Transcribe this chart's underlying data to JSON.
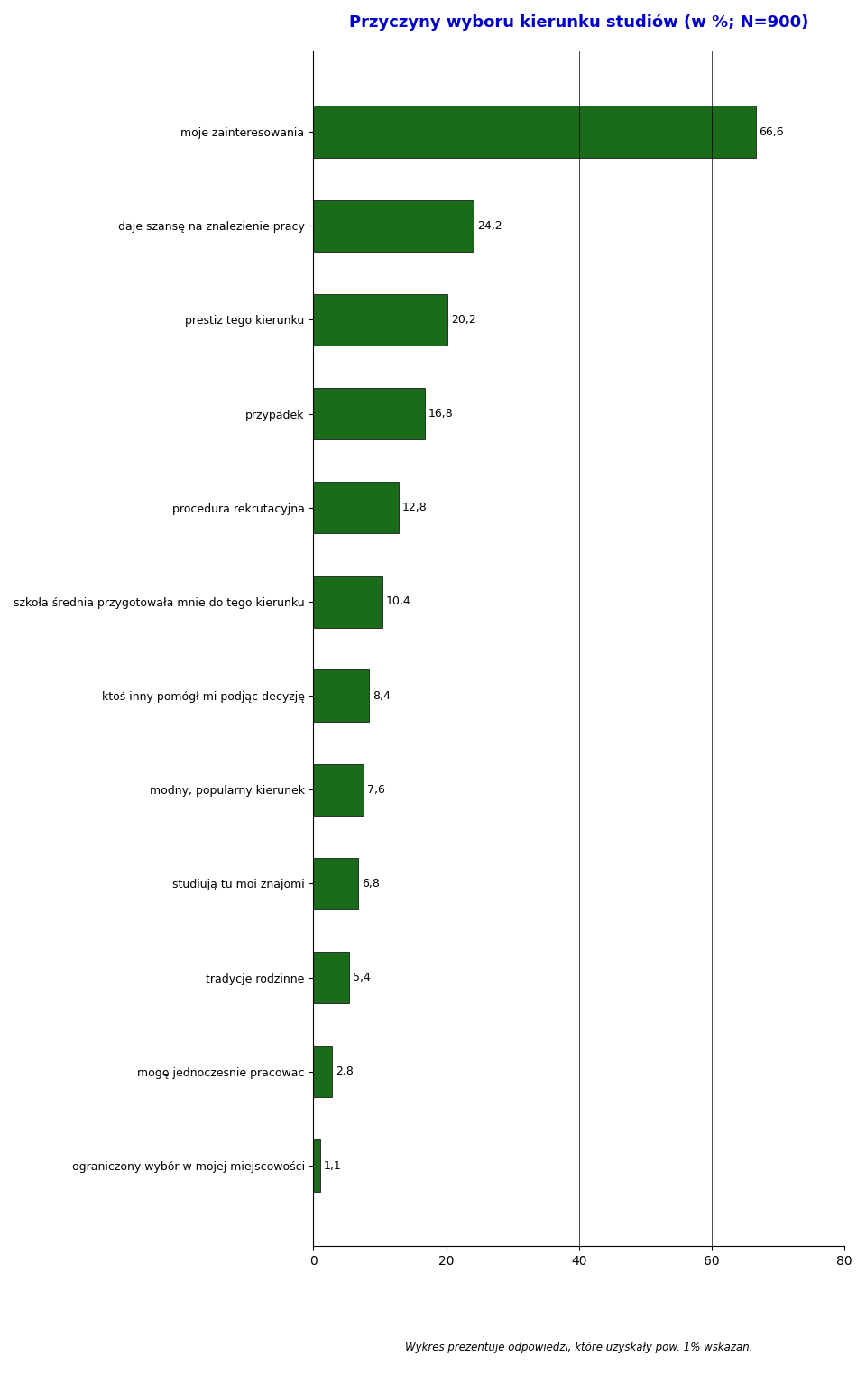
{
  "title": "Przyczyny wyboru kierunku studiów (w %; N=900)",
  "title_color": "#0000CC",
  "categories": [
    "moje zainteresowania",
    "daje szansę na znalezienie pracy",
    "prestiz tego kierunku",
    "przypadek",
    "procedura rekrutacyjna",
    "szkoła średnia przygotowała mnie do tego kierunku",
    "ktoś inny pomógł mi podjąc decyzję",
    "modny, popularny kierunek",
    "studiują tu moi znajomi",
    "tradycje rodzinne",
    "mogę jednoczesnie pracowac",
    "ograniczony wybór w mojej miejscowości"
  ],
  "values": [
    66.6,
    24.2,
    20.2,
    16.8,
    12.8,
    10.4,
    8.4,
    7.6,
    6.8,
    5.4,
    2.8,
    1.1
  ],
  "bar_color": "#1a6b1a",
  "bar_edge_color": "#000000",
  "xlabel": "",
  "xlim": [
    0,
    80
  ],
  "xticks": [
    0,
    20,
    40,
    60,
    80
  ],
  "caption": "Wykres prezentuje odpowiedzi, które uzyskały pow. 1% wskazan.",
  "background_color": "#ffffff",
  "label_fontsize": 9,
  "value_fontsize": 9,
  "title_fontsize": 13
}
